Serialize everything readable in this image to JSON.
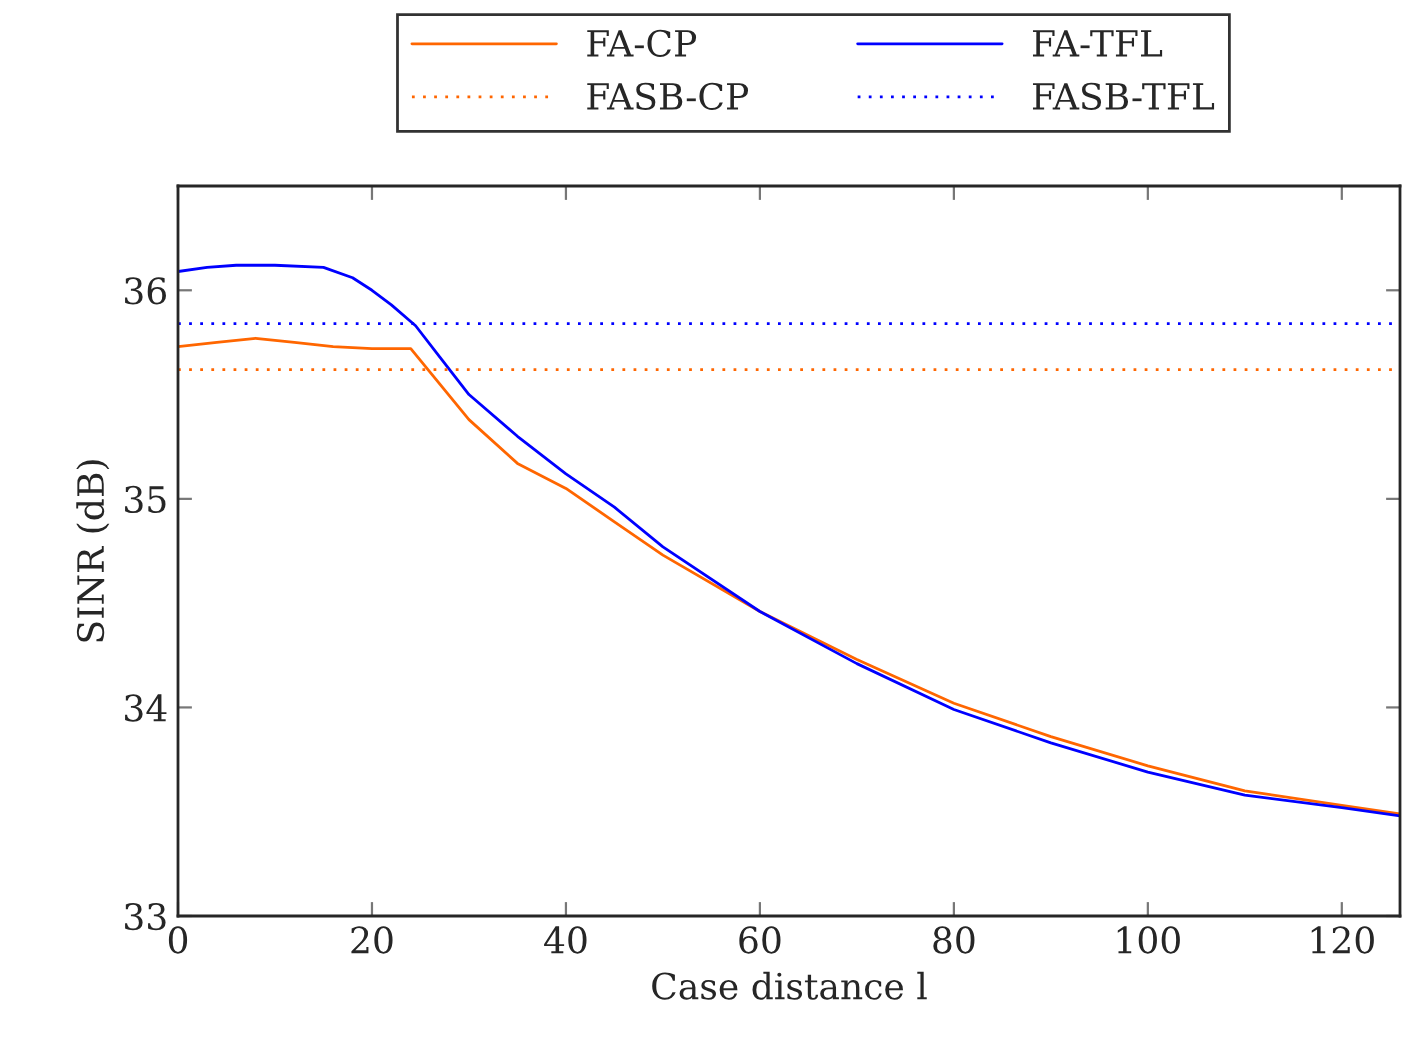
{
  "chart_data": {
    "type": "line",
    "xlabel": "Case distance l",
    "ylabel": "SINR (dB)",
    "xlim": [
      0,
      126
    ],
    "ylim": [
      33,
      36.5
    ],
    "xticks": [
      0,
      20,
      40,
      60,
      80,
      100,
      120
    ],
    "yticks": [
      33,
      34,
      35,
      36
    ],
    "grid": false,
    "legend": "top",
    "marker": "none",
    "series": [
      {
        "name": "FA-CP",
        "color": "#ff6600",
        "line_style": "solid",
        "x": [
          0,
          4,
          8,
          12,
          16,
          20,
          24,
          30,
          35,
          40,
          45,
          50,
          60,
          70,
          80,
          90,
          100,
          110,
          120,
          126
        ],
        "values": [
          35.73,
          35.75,
          35.77,
          35.75,
          35.73,
          35.72,
          35.72,
          35.38,
          35.17,
          35.05,
          34.89,
          34.73,
          34.46,
          34.23,
          34.02,
          33.86,
          33.72,
          33.6,
          33.53,
          33.49
        ]
      },
      {
        "name": "FA-TFL",
        "color": "#0000ff",
        "line_style": "solid",
        "x": [
          0,
          3,
          6,
          10,
          15,
          18,
          20,
          22,
          24.5,
          27,
          30,
          35,
          40,
          45,
          50,
          60,
          70,
          80,
          90,
          100,
          110,
          120,
          126
        ],
        "values": [
          36.09,
          36.11,
          36.12,
          36.12,
          36.11,
          36.06,
          36.0,
          35.93,
          35.83,
          35.68,
          35.5,
          35.3,
          35.12,
          34.96,
          34.77,
          34.46,
          34.21,
          33.99,
          33.83,
          33.69,
          33.58,
          33.52,
          33.48
        ]
      },
      {
        "name": "FASB-CP",
        "color": "#ff6600",
        "line_style": "dotted",
        "x": [
          0,
          126
        ],
        "values": [
          35.62,
          35.62
        ]
      },
      {
        "name": "FASB-TFL",
        "color": "#0000ff",
        "line_style": "dotted",
        "x": [
          0,
          126
        ],
        "values": [
          35.84,
          35.84
        ]
      }
    ]
  }
}
